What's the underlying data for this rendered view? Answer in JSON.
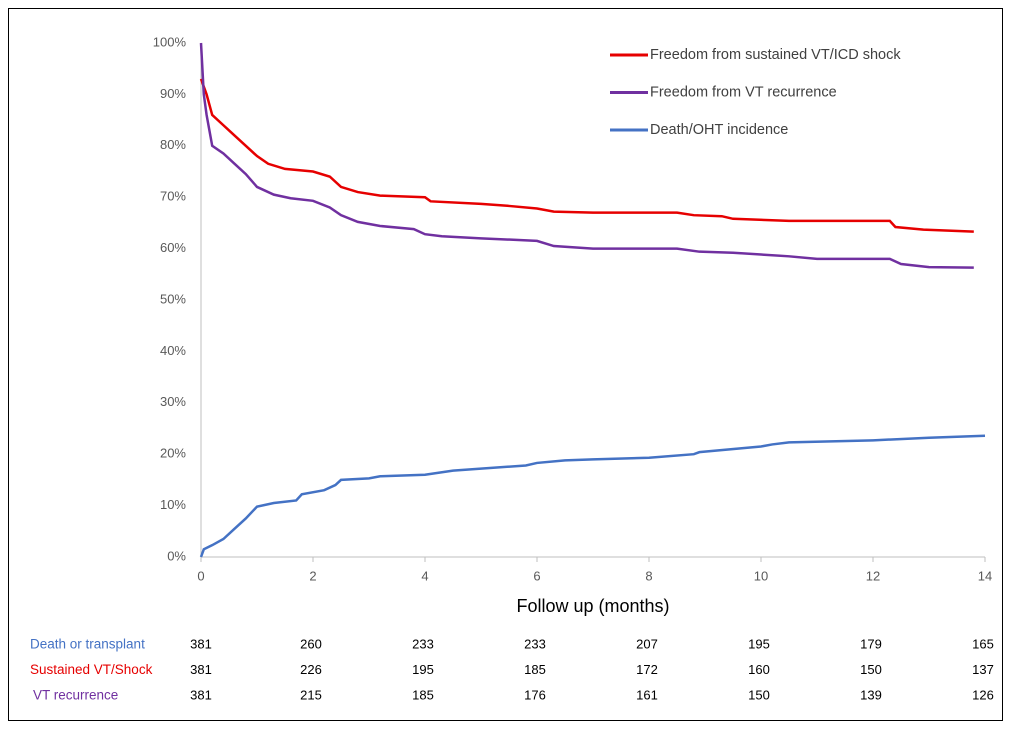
{
  "chart_data": {
    "type": "line",
    "x_label": "Follow up (months)",
    "xlim": [
      0,
      14
    ],
    "xticks": [
      0,
      2,
      4,
      6,
      8,
      10,
      12,
      14
    ],
    "ylim": [
      0,
      100
    ],
    "yticks": [
      {
        "value": 0,
        "label": "0%"
      },
      {
        "value": 10,
        "label": "10%"
      },
      {
        "value": 20,
        "label": "20%"
      },
      {
        "value": 30,
        "label": "30%"
      },
      {
        "value": 40,
        "label": "40%"
      },
      {
        "value": 50,
        "label": "50%"
      },
      {
        "value": 60,
        "label": "60%"
      },
      {
        "value": 70,
        "label": "70%"
      },
      {
        "value": 80,
        "label": "80%"
      },
      {
        "value": 90,
        "label": "90%"
      },
      {
        "value": 100,
        "label": "100%"
      }
    ],
    "grid": false,
    "legend": "top-right",
    "series": [
      {
        "name": "Freedom from sustained VT/ICD shock",
        "color": "#e60000",
        "x": [
          0,
          0.1,
          0.2,
          0.4,
          0.6,
          0.8,
          1,
          1.2,
          1.5,
          2,
          2.3,
          2.5,
          2.8,
          3.2,
          4,
          4.1,
          5,
          5.5,
          6,
          6.3,
          7,
          8.5,
          8.8,
          9.3,
          9.5,
          10.5,
          12.3,
          12.4,
          12.9,
          13.8
        ],
        "values": [
          93,
          90,
          86,
          84,
          82,
          80,
          78,
          76.5,
          75.5,
          75,
          74,
          72,
          71,
          70.3,
          70,
          69.2,
          68.7,
          68.3,
          67.8,
          67.2,
          67,
          67,
          66.5,
          66.3,
          65.8,
          65.4,
          65.4,
          64.2,
          63.7,
          63.3
        ]
      },
      {
        "name": "Freedom from VT recurrence",
        "color": "#7030a0",
        "x": [
          0,
          0.05,
          0.1,
          0.2,
          0.4,
          0.6,
          0.8,
          1,
          1.3,
          1.6,
          2,
          2.3,
          2.5,
          2.8,
          3.2,
          3.8,
          4,
          4.3,
          5,
          6,
          6.3,
          7,
          8.5,
          8.9,
          9.5,
          10.5,
          11,
          12.3,
          12.5,
          13,
          13.8
        ],
        "values": [
          100,
          90,
          86,
          80,
          78.5,
          76.5,
          74.5,
          72,
          70.5,
          69.8,
          69.3,
          68,
          66.5,
          65.2,
          64.4,
          63.8,
          62.8,
          62.4,
          62,
          61.5,
          60.5,
          60,
          60,
          59.4,
          59.2,
          58.5,
          58,
          58,
          57,
          56.4,
          56.3
        ]
      },
      {
        "name": "Death/OHT incidence",
        "color": "#4472c4",
        "x": [
          0,
          0.05,
          0.2,
          0.4,
          0.6,
          0.8,
          1,
          1.3,
          1.7,
          1.8,
          2.2,
          2.4,
          2.5,
          3,
          3.2,
          4,
          4.5,
          5,
          5.8,
          6,
          6.5,
          7,
          8,
          8.8,
          8.9,
          10,
          10.2,
          10.5,
          12,
          13,
          14
        ],
        "values": [
          0,
          1.5,
          2.3,
          3.5,
          5.5,
          7.5,
          9.8,
          10.5,
          11,
          12.2,
          13,
          14,
          15,
          15.3,
          15.7,
          16,
          16.8,
          17.2,
          17.8,
          18.3,
          18.8,
          19,
          19.3,
          20,
          20.4,
          21.5,
          21.9,
          22.3,
          22.7,
          23.2,
          23.6
        ]
      }
    ],
    "risk_table": [
      {
        "label": "Death or transplant",
        "color": "#4472c4",
        "counts": [
          381,
          260,
          233,
          233,
          207,
          195,
          179,
          165
        ]
      },
      {
        "label": "Sustained VT/Shock",
        "color": "#e60000",
        "counts": [
          381,
          226,
          195,
          185,
          172,
          160,
          150,
          137
        ]
      },
      {
        "label": "VT recurrence",
        "color": "#7030a0",
        "counts": [
          381,
          215,
          185,
          176,
          161,
          150,
          139,
          126
        ]
      }
    ]
  }
}
